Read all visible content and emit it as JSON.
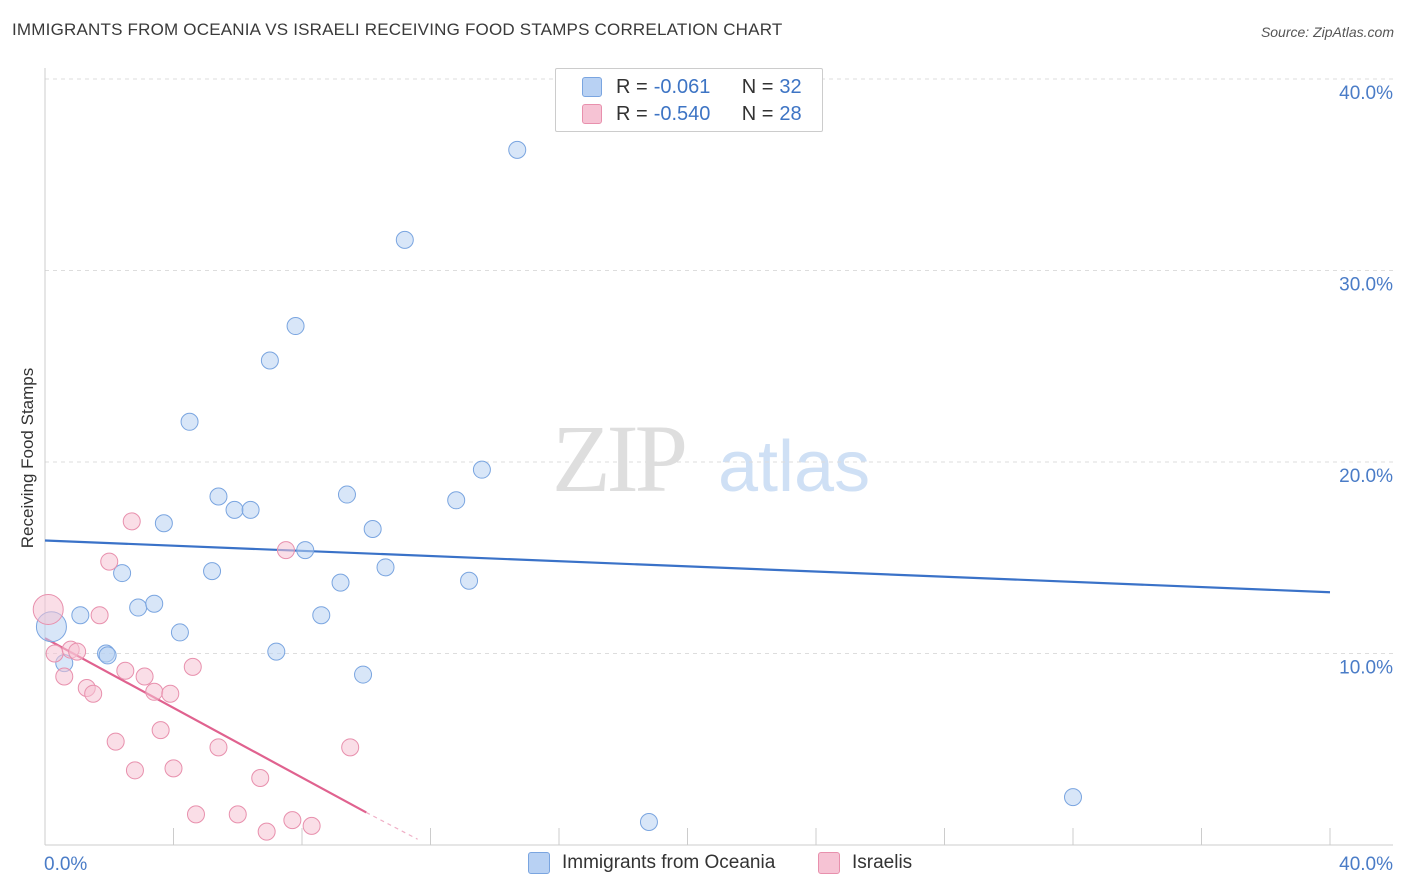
{
  "title": "IMMIGRANTS FROM OCEANIA VS ISRAELI RECEIVING FOOD STAMPS CORRELATION CHART",
  "source": "Source: ZipAtlas.com",
  "watermark": {
    "zip": "ZIP",
    "atlas": "atlas"
  },
  "colors": {
    "blue": "#3a72c8",
    "blue_fill": "#b8d1f3",
    "pink": "#e0628f",
    "pink_fill": "#f6c3d4",
    "accent_text": "#3d74c4"
  },
  "legend": {
    "rows": [
      {
        "r_label": "R =",
        "r_value": "-0.061",
        "n_label": "N =",
        "n_value": "32"
      },
      {
        "r_label": "R =",
        "r_value": "-0.540",
        "n_label": "N =",
        "n_value": "28"
      }
    ]
  },
  "bottom_legend": {
    "blue_label": "Immigrants from Oceania",
    "pink_label": "Israelis"
  },
  "chart_data": {
    "type": "scatter",
    "ylabel": "Receiving Food Stamps",
    "xlim": [
      0,
      40
    ],
    "ylim": [
      0,
      40
    ],
    "x_tick_labels": [
      "0.0%",
      "40.0%"
    ],
    "y_ticks": [
      10,
      20,
      30,
      40
    ],
    "y_tick_labels": [
      "10.0%",
      "20.0%",
      "30.0%",
      "40.0%"
    ],
    "series": [
      {
        "name": "Immigrants from Oceania",
        "color": "#3a72c8",
        "trend": {
          "x0": 0,
          "y0": 15.9,
          "x1": 40,
          "y1": 13.2
        },
        "points": [
          {
            "x": 0.2,
            "y": 11.4
          },
          {
            "x": 0.6,
            "y": 9.5
          },
          {
            "x": 1.1,
            "y": 12.0
          },
          {
            "x": 1.9,
            "y": 10.0
          },
          {
            "x": 1.95,
            "y": 9.9
          },
          {
            "x": 2.4,
            "y": 14.2
          },
          {
            "x": 2.9,
            "y": 12.4
          },
          {
            "x": 3.4,
            "y": 12.6
          },
          {
            "x": 3.7,
            "y": 16.8
          },
          {
            "x": 4.2,
            "y": 11.1
          },
          {
            "x": 4.5,
            "y": 22.1
          },
          {
            "x": 5.2,
            "y": 14.3
          },
          {
            "x": 5.4,
            "y": 18.2
          },
          {
            "x": 5.9,
            "y": 17.5
          },
          {
            "x": 6.4,
            "y": 17.5
          },
          {
            "x": 7.0,
            "y": 25.3
          },
          {
            "x": 7.2,
            "y": 10.1
          },
          {
            "x": 7.8,
            "y": 27.1
          },
          {
            "x": 8.1,
            "y": 15.4
          },
          {
            "x": 8.6,
            "y": 12.0
          },
          {
            "x": 9.2,
            "y": 13.7
          },
          {
            "x": 9.4,
            "y": 18.3
          },
          {
            "x": 9.9,
            "y": 8.9
          },
          {
            "x": 10.2,
            "y": 16.5
          },
          {
            "x": 10.6,
            "y": 14.5
          },
          {
            "x": 11.2,
            "y": 31.6
          },
          {
            "x": 12.8,
            "y": 18.0
          },
          {
            "x": 13.2,
            "y": 13.8
          },
          {
            "x": 13.6,
            "y": 19.6
          },
          {
            "x": 14.7,
            "y": 36.3
          },
          {
            "x": 18.8,
            "y": 1.2
          },
          {
            "x": 32.0,
            "y": 2.5
          }
        ]
      },
      {
        "name": "Israelis",
        "color": "#e0628f",
        "trend": {
          "x0": 0,
          "y0": 10.8,
          "x1": 10,
          "y1": 1.7,
          "dash_x1": 11.6,
          "dash_y1": 0.3
        },
        "points": [
          {
            "x": 0.1,
            "y": 12.3
          },
          {
            "x": 0.3,
            "y": 10.0
          },
          {
            "x": 0.6,
            "y": 8.8
          },
          {
            "x": 0.8,
            "y": 10.2
          },
          {
            "x": 1.0,
            "y": 10.1
          },
          {
            "x": 1.3,
            "y": 8.2
          },
          {
            "x": 1.5,
            "y": 7.9
          },
          {
            "x": 1.7,
            "y": 12.0
          },
          {
            "x": 2.0,
            "y": 14.8
          },
          {
            "x": 2.2,
            "y": 5.4
          },
          {
            "x": 2.5,
            "y": 9.1
          },
          {
            "x": 2.7,
            "y": 16.9
          },
          {
            "x": 2.8,
            "y": 3.9
          },
          {
            "x": 3.1,
            "y": 8.8
          },
          {
            "x": 3.4,
            "y": 8.0
          },
          {
            "x": 3.6,
            "y": 6.0
          },
          {
            "x": 3.9,
            "y": 7.9
          },
          {
            "x": 4.0,
            "y": 4.0
          },
          {
            "x": 4.6,
            "y": 9.3
          },
          {
            "x": 4.7,
            "y": 1.6
          },
          {
            "x": 5.4,
            "y": 5.1
          },
          {
            "x": 6.0,
            "y": 1.6
          },
          {
            "x": 6.7,
            "y": 3.5
          },
          {
            "x": 6.9,
            "y": 0.7
          },
          {
            "x": 7.5,
            "y": 15.4
          },
          {
            "x": 7.7,
            "y": 1.3
          },
          {
            "x": 8.3,
            "y": 1.0
          },
          {
            "x": 9.5,
            "y": 5.1
          }
        ]
      }
    ]
  }
}
